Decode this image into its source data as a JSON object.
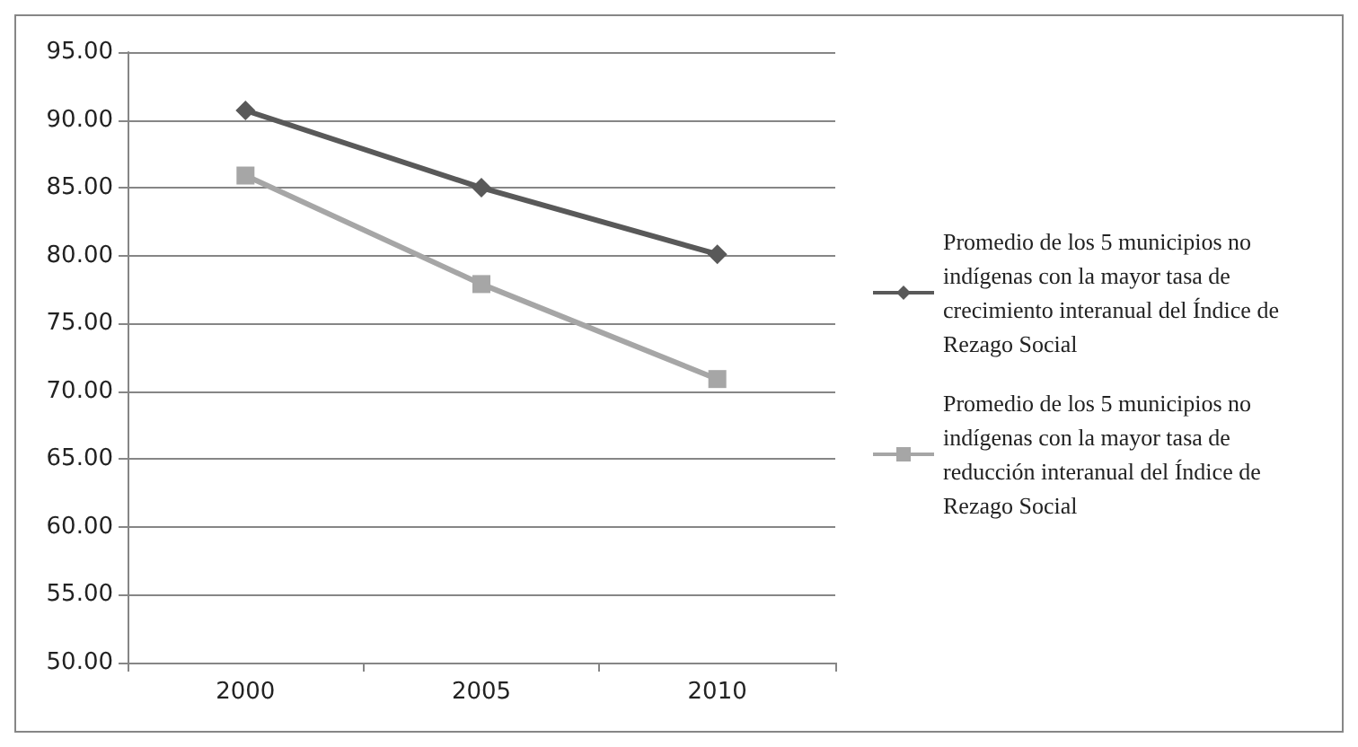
{
  "chart_data": {
    "type": "line",
    "categories": [
      "2000",
      "2005",
      "2010"
    ],
    "series": [
      {
        "name": "Promedio de los 5 municipios no indígenas con la mayor tasa de crecimiento interanual del Índice de Rezago Social",
        "color": "#595959",
        "marker": "diamond",
        "values": [
          90.7,
          85.0,
          80.1
        ]
      },
      {
        "name": "Promedio de los 5 municipios no indígenas con la mayor tasa de reducción interanual del Índice de Rezago Social",
        "color": "#a6a6a6",
        "marker": "square",
        "values": [
          85.9,
          77.9,
          70.9
        ]
      }
    ],
    "ylim": [
      50,
      95
    ],
    "yticks": [
      {
        "value": 50,
        "label": "50.00"
      },
      {
        "value": 55,
        "label": "55.00"
      },
      {
        "value": 60,
        "label": "60.00"
      },
      {
        "value": 65,
        "label": "65.00"
      },
      {
        "value": 70,
        "label": "70.00"
      },
      {
        "value": 75,
        "label": "75.00"
      },
      {
        "value": 80,
        "label": "80.00"
      },
      {
        "value": 85,
        "label": "85.00"
      },
      {
        "value": 90,
        "label": "90.00"
      },
      {
        "value": 95,
        "label": "95.00"
      }
    ],
    "grid": "y",
    "legend": "right"
  }
}
